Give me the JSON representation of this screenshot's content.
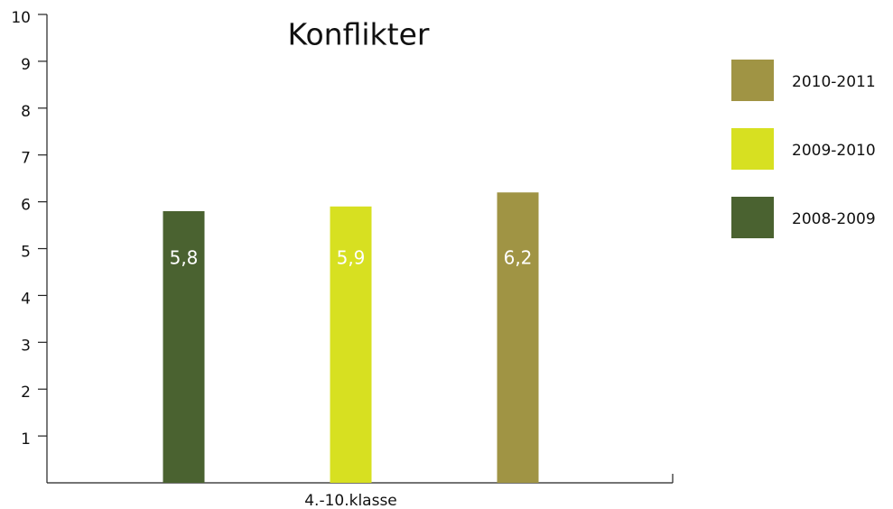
{
  "chart_data": {
    "type": "bar",
    "title": "Konflikter",
    "categories": [
      "4.-10.klasse"
    ],
    "series": [
      {
        "name": "2008-2009",
        "color": "#4a6230",
        "values": [
          5.8
        ],
        "value_labels": [
          "5,8"
        ]
      },
      {
        "name": "2009-2010",
        "color": "#d7e021",
        "values": [
          5.9
        ],
        "value_labels": [
          "5,9"
        ]
      },
      {
        "name": "2010-2011",
        "color": "#a09444",
        "values": [
          6.2
        ],
        "value_labels": [
          "6,2"
        ]
      }
    ],
    "ylim": [
      0,
      10
    ],
    "yticks": [
      1,
      2,
      3,
      4,
      5,
      6,
      7,
      8,
      9,
      10
    ],
    "grid": false,
    "legend": "right"
  }
}
